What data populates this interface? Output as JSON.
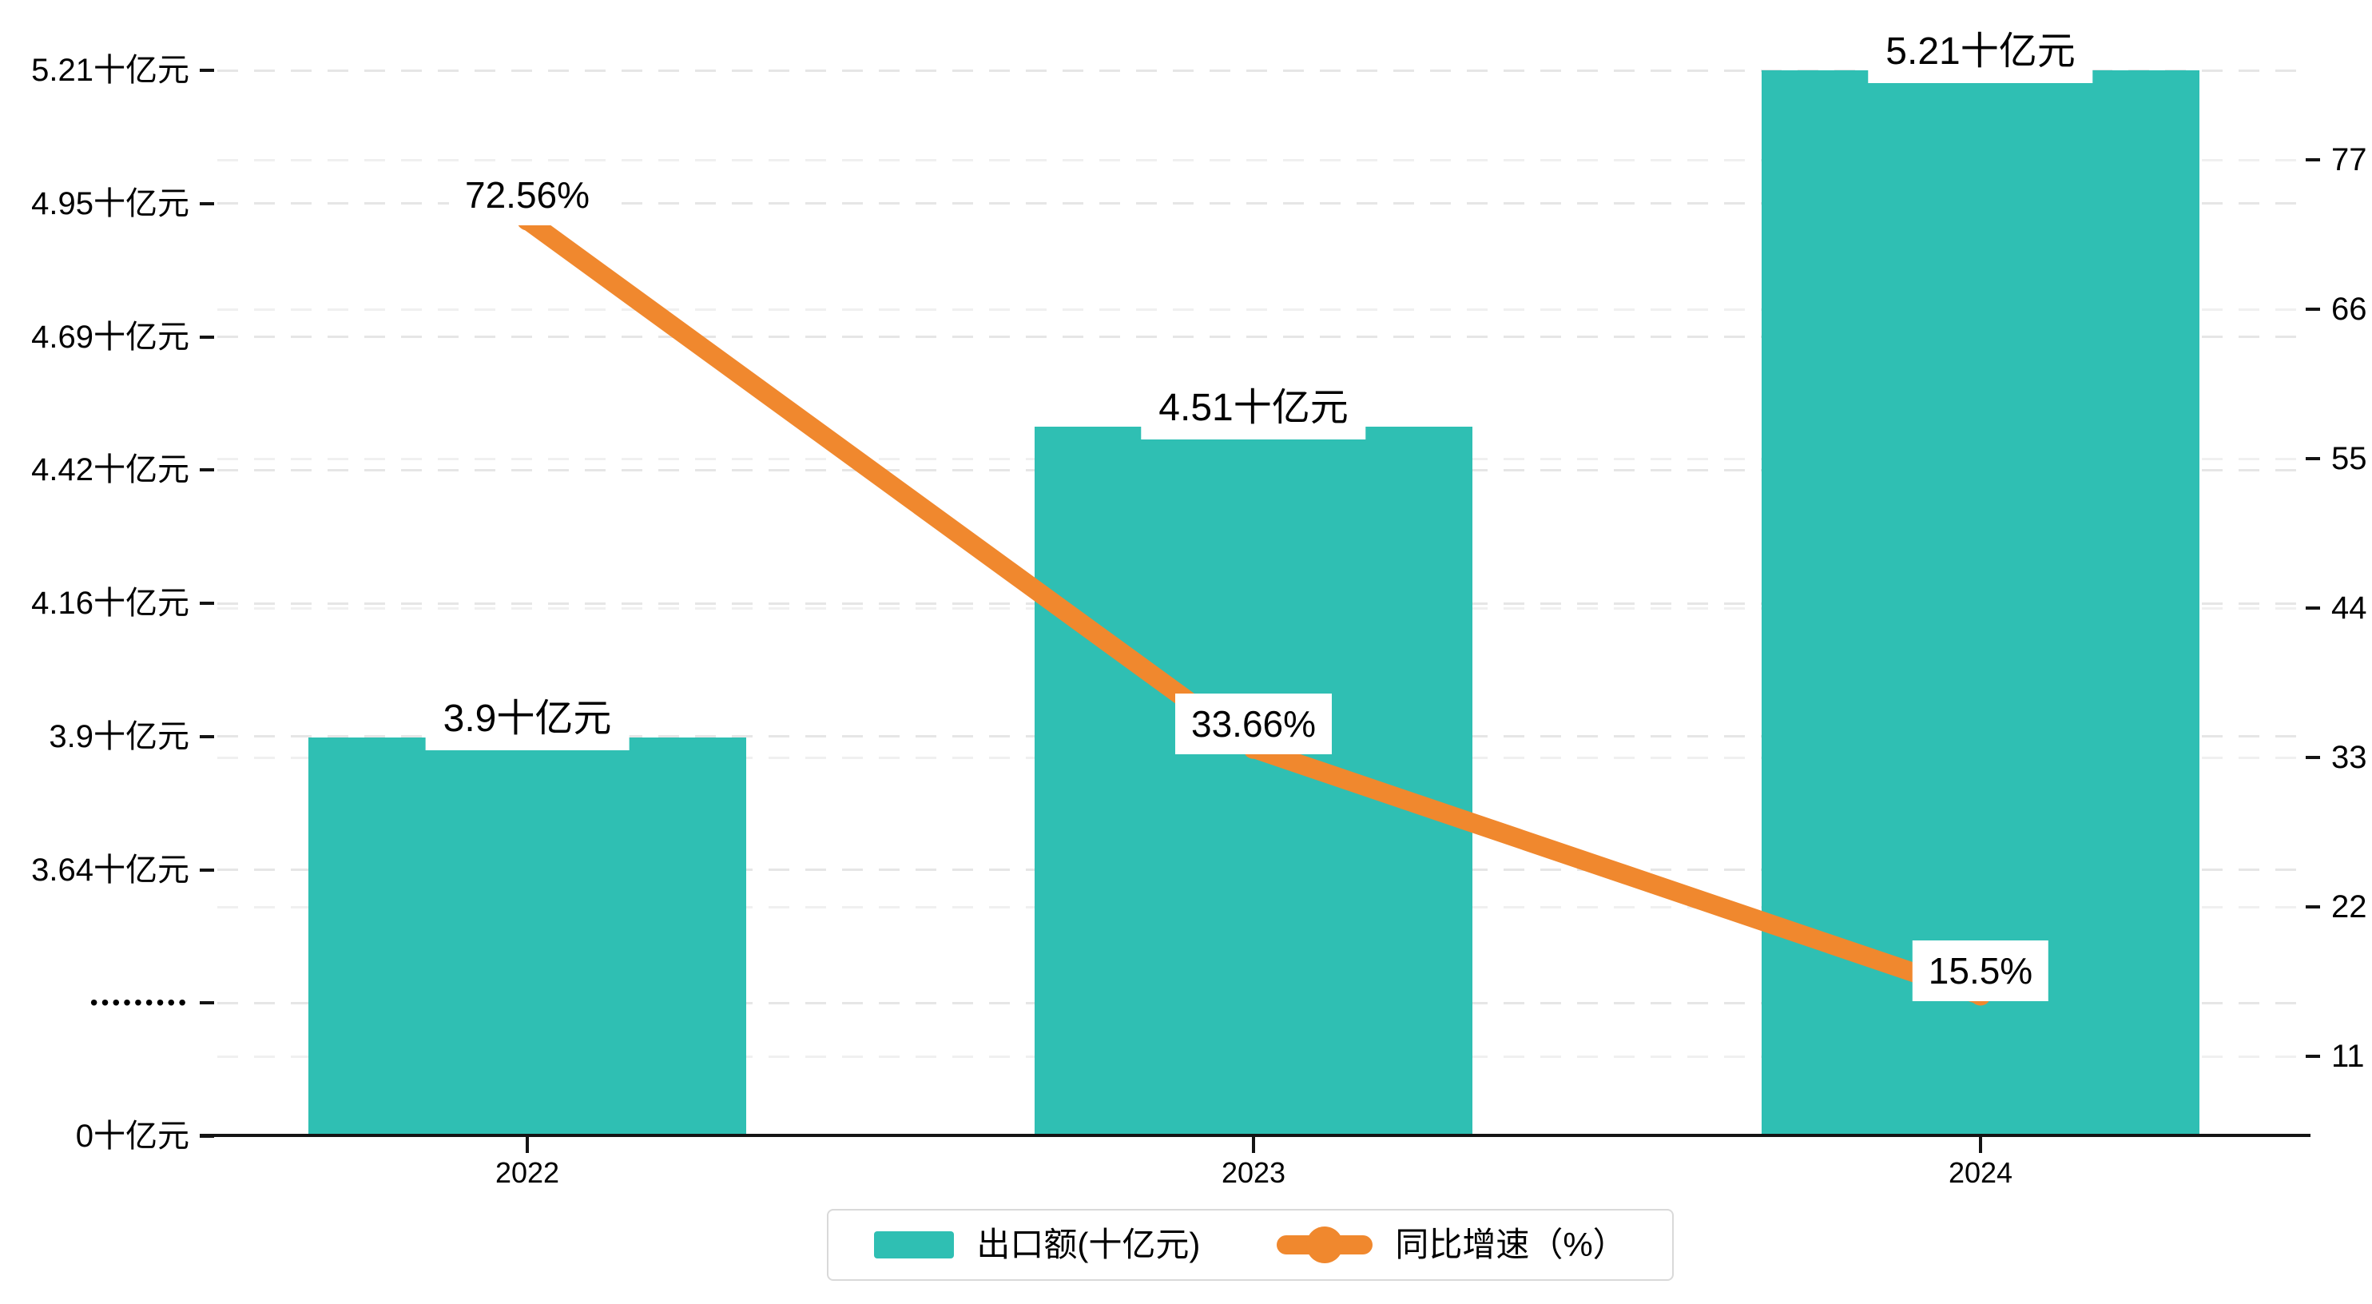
{
  "chart_data": {
    "type": "bar",
    "subtype": "dual-axis bar + line, broken left axis",
    "categories": [
      "2022",
      "2023",
      "2024"
    ],
    "series": [
      {
        "name": "出口额(十亿元)",
        "type": "bar",
        "axis": "left",
        "unit": "十亿元",
        "values": [
          3.9,
          4.51,
          5.21
        ],
        "data_labels": [
          "3.9十亿元",
          "4.51十亿元",
          "5.21十亿元"
        ],
        "color": "#2fbfb3"
      },
      {
        "name": "同比增速（%）",
        "type": "line",
        "axis": "right",
        "unit": "%",
        "values": [
          72.56,
          33.66,
          15.5
        ],
        "data_labels": [
          "72.56%",
          "33.66%",
          "15.5%"
        ],
        "color": "#f0882e"
      }
    ],
    "left_axis": {
      "tick_labels": [
        "5.21十亿元",
        "4.95十亿元",
        "4.69十亿元",
        "4.42十亿元",
        "4.16十亿元",
        "3.9十亿元",
        "3.64十亿元",
        "•••••••••",
        "0十亿元"
      ],
      "tick_values": [
        5.21,
        4.95,
        4.69,
        4.42,
        4.16,
        3.9,
        3.64,
        null,
        0
      ],
      "broken_axis": true
    },
    "right_axis": {
      "tick_labels": [
        "77",
        "66",
        "55",
        "44",
        "33",
        "22",
        "11"
      ],
      "tick_values": [
        77,
        66,
        55,
        44,
        33,
        22,
        11
      ]
    },
    "grid": "dashed",
    "legend_position": "bottom-center",
    "colors": {
      "bar": "#2fbfb3",
      "line": "#f0882e",
      "grid_left": "#e6e6e6",
      "grid_right": "#f0f0f0",
      "axis": "#141414",
      "text": "#000000",
      "label_background": "#ffffff"
    }
  }
}
